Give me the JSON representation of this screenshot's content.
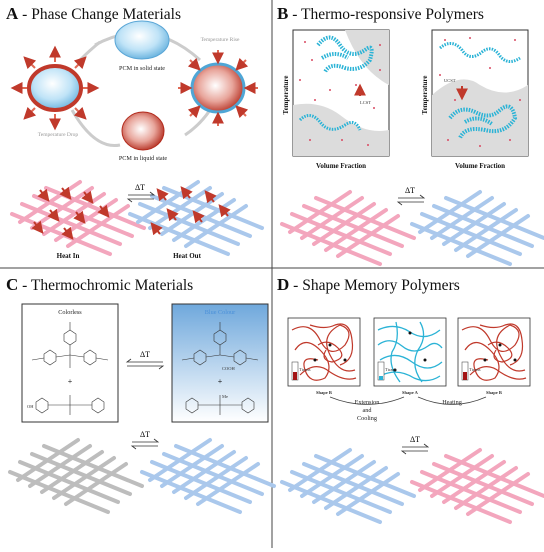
{
  "panels": {
    "a": {
      "letter": "A",
      "title": " - Phase Change Materials",
      "pcm_solid": "PCM in solid state",
      "pcm_liquid": "PCM in liquid state",
      "temp_rise": "Temperature Rise",
      "temp_drop": "Temperature Drop",
      "delta": "ΔT",
      "heat_in": "Heat In",
      "heat_out": "Heat Out"
    },
    "b": {
      "letter": "B",
      "title": " - Thermo-responsive Polymers",
      "ylabel_left": "Temperature",
      "ylabel_right": "Temperature",
      "xlabel_left": "Volume Fraction",
      "xlabel_right": "Volume Fraction",
      "lcst": "LCST",
      "ucst": "UCST",
      "delta": "ΔT"
    },
    "c": {
      "letter": "C",
      "title": " - Thermochromic Materials",
      "colorless": "Colorless",
      "blue_colour": "Blue Colour",
      "delta": "ΔT",
      "plus": "+",
      "me": "Me",
      "oh": "OH",
      "cooh": "COOH"
    },
    "d": {
      "letter": "D",
      "title": " - Shape Memory Polymers",
      "shape_b1": "Shape B",
      "shape_a": "Shape A",
      "shape_b2": "Shape B",
      "extension": "Extension",
      "and": "and",
      "cooling": "Cooling",
      "heating": "Heating",
      "delta": "ΔT",
      "ttrans1": "Ttrans",
      "ttrans2": "Ttrans",
      "ttrans3": "Ttrans"
    }
  },
  "colors": {
    "pink": "#f3a6bd",
    "blue": "#aac8ec",
    "grey": "#bdbdbd",
    "red": "#c0392b",
    "cyan": "#2bb3d6"
  }
}
